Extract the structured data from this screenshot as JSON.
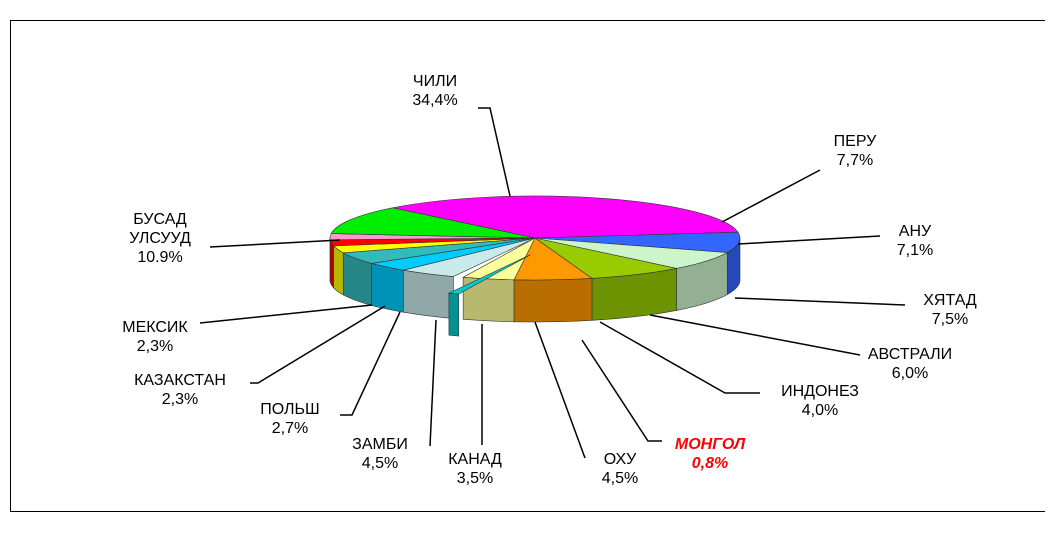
{
  "chart_data": {
    "type": "pie",
    "categories": [
      "ЧИЛИ",
      "ПЕРУ",
      "АНУ",
      "ХЯТАД",
      "АВСТРАЛИ",
      "ИНДОНЕЗ",
      "МОНГОЛ",
      "ОХУ",
      "КАНАД",
      "ЗАМБИ",
      "ПОЛЬШ",
      "КАЗАКСТАН",
      "МЕКСИК",
      "БУСАД УЛСУУД"
    ],
    "values": [
      34.4,
      7.7,
      7.1,
      7.5,
      6.0,
      4.0,
      0.8,
      4.5,
      3.5,
      4.5,
      2.7,
      2.3,
      2.3,
      10.9
    ],
    "value_labels": [
      "34,4%",
      "7,7%",
      "7,1%",
      "7,5%",
      "6,0%",
      "4,0%",
      "0,8%",
      "4,5%",
      "3,5%",
      "4,5%",
      "2,7%",
      "2,3%",
      "2,3%",
      "10.9%"
    ],
    "colors": [
      "#ff00ff",
      "#3366ff",
      "#ccf5cc",
      "#99cc00",
      "#ff9900",
      "#ffff99",
      "#00cccc",
      "#c8eaea",
      "#00ccff",
      "#33bbbb",
      "#ffff00",
      "#ff0000",
      "#ff99cc",
      "#00ee00"
    ],
    "highlight": "МОНГОЛ"
  }
}
